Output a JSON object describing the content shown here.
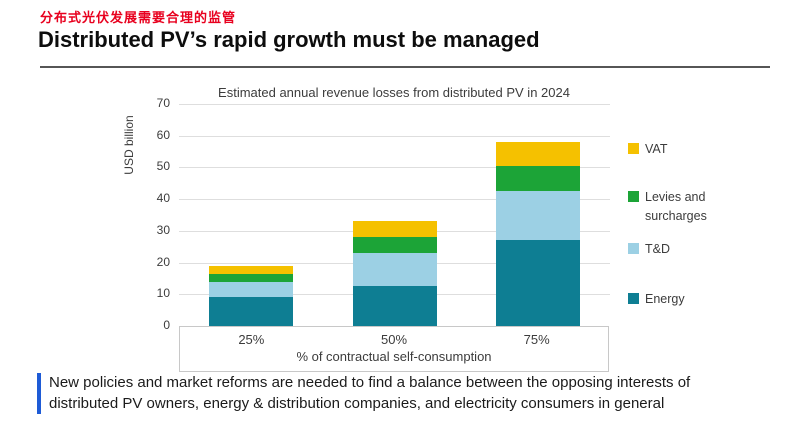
{
  "page": {
    "cn_title": "分布式光伏发展需要合理的监管",
    "en_title": "Distributed PV’s rapid growth must be managed"
  },
  "chart_data": {
    "type": "bar",
    "stacked": true,
    "title": "Estimated annual revenue losses from distributed PV in 2024",
    "ylabel": "USD billion",
    "xlabel": "% of contractual self-consumption",
    "categories": [
      "25%",
      "50%",
      "75%"
    ],
    "series": [
      {
        "name": "Energy",
        "color": "#0E7E93",
        "values": [
          9,
          12.5,
          27
        ]
      },
      {
        "name": "T&D",
        "color": "#9CD0E4",
        "values": [
          5,
          10.5,
          15.5
        ]
      },
      {
        "name": "Levies and surcharges",
        "color": "#1CA437",
        "values": [
          2.5,
          5,
          8
        ]
      },
      {
        "name": "VAT",
        "color": "#F5C100",
        "values": [
          2.5,
          5,
          7.5
        ]
      }
    ],
    "totals": [
      19,
      33,
      58
    ],
    "ylim": [
      0,
      70
    ],
    "ytick_step": 10,
    "grid": true,
    "legend_position": "right",
    "legend_order": [
      "VAT",
      "Levies and surcharges",
      "T&D",
      "Energy"
    ]
  },
  "callout": {
    "text": "New policies and market reforms are needed to find a balance between the opposing interests of distributed PV owners, energy & distribution companies, and electricity consumers in general"
  },
  "colors": {
    "cn_title_red": "#E8001E",
    "callout_bar_blue": "#1E5BD6",
    "gridline": "#DEDEDE",
    "axis_box_border": "#C8C8C8",
    "text_dark": "#3C3C3C"
  }
}
